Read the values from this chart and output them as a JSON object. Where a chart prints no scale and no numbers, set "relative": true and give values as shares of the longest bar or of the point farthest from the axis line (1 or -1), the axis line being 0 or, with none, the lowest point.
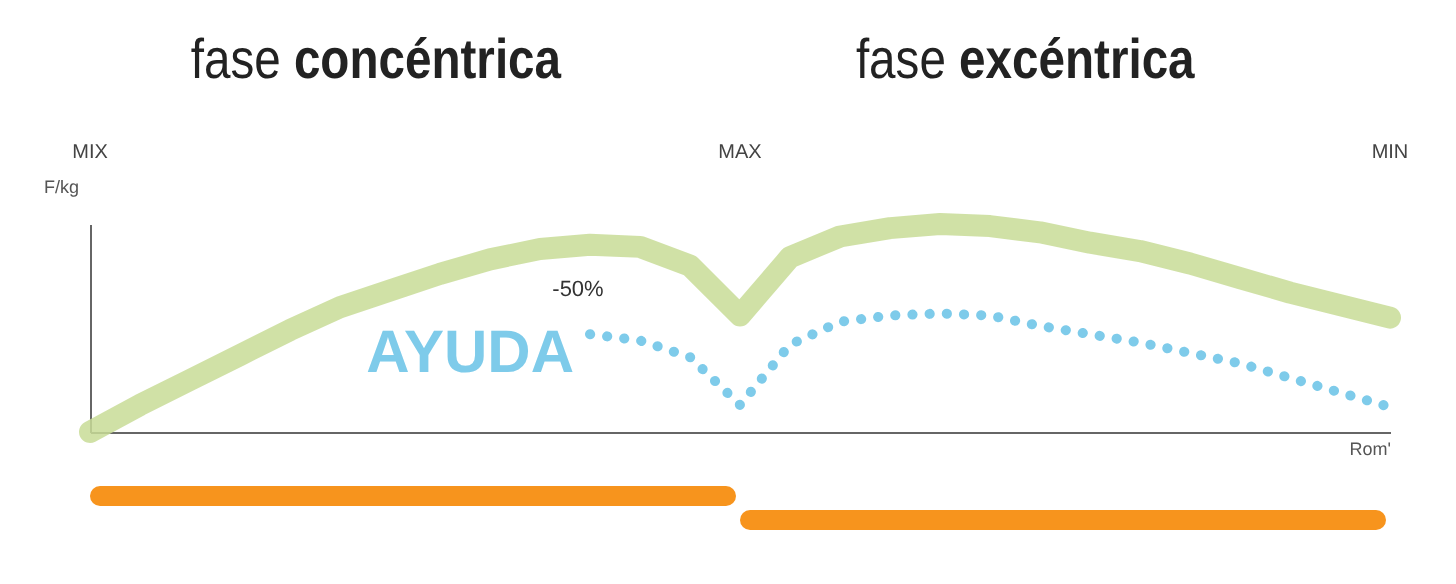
{
  "chart_data": {
    "type": "line",
    "relative": true,
    "ylabel": "F/kg",
    "xlabel": "Rom'",
    "categories": [
      "MIX",
      null,
      null,
      null,
      null,
      null,
      null,
      null,
      null,
      null,
      null,
      null,
      null,
      "MAX",
      null,
      null,
      null,
      null,
      null,
      null,
      null,
      null,
      null,
      null,
      null,
      null,
      "MIN"
    ],
    "annotations": [
      "fase concéntrica",
      "fase excéntrica",
      "-50%"
    ],
    "series": [
      {
        "color": "#c8dc96",
        "line_style": "solid",
        "values": [
          0,
          0.13,
          0.25,
          0.37,
          0.49,
          0.6,
          0.68,
          0.76,
          0.83,
          0.88,
          0.9,
          0.89,
          0.8,
          0.56,
          0.84,
          0.94,
          0.98,
          1,
          0.99,
          0.96,
          0.91,
          0.87,
          0.81,
          0.74,
          0.67,
          0.61,
          0.55
        ]
      },
      {
        "name": "AYUDA",
        "color": "#7ecbea",
        "line_style": "dotted",
        "values": [
          null,
          null,
          null,
          null,
          null,
          null,
          null,
          null,
          null,
          null,
          0.47,
          0.44,
          0.36,
          0.13,
          0.42,
          0.53,
          0.56,
          0.57,
          0.56,
          0.51,
          0.47,
          0.43,
          0.38,
          0.33,
          0.26,
          0.19,
          0.12
        ]
      }
    ]
  }
}
